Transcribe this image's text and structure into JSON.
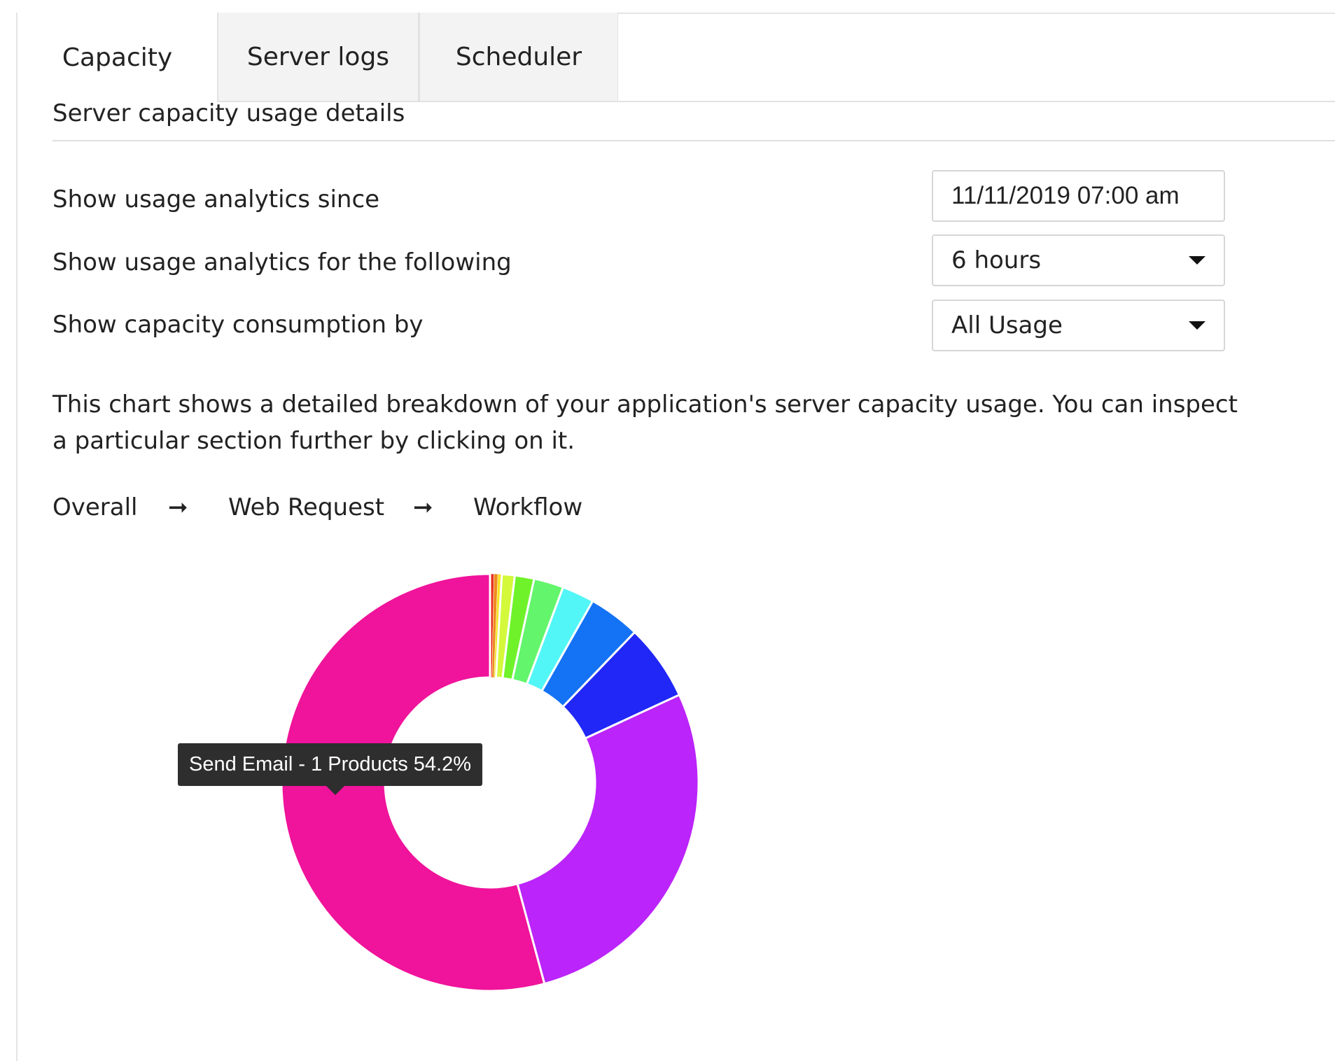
{
  "tabs": [
    {
      "label": "Capacity",
      "active": true
    },
    {
      "label": "Server logs",
      "active": false
    },
    {
      "label": "Scheduler",
      "active": false
    }
  ],
  "section_title": "Server capacity usage details",
  "form": {
    "since_label": "Show usage analytics since",
    "since_value": "11/11/2019 07:00 am",
    "duration_label": "Show usage analytics for the following",
    "duration_value": "6 hours",
    "consumption_label": "Show capacity consumption by",
    "consumption_value": "All Usage"
  },
  "description": "This chart shows a detailed breakdown of your application's server capacity usage. You can inspect a particular section further by clicking on it.",
  "breadcrumb": {
    "items": [
      "Overall",
      "Web Request",
      "Workflow"
    ],
    "separator": "➞"
  },
  "tooltip": {
    "label": "Send Email - 1 Products",
    "value": "54.2%"
  },
  "chart_data": {
    "type": "pie",
    "variant": "donut",
    "series": [
      {
        "color": "#e8321f",
        "percent": 0.3
      },
      {
        "color": "#ef8a1d",
        "percent": 0.3
      },
      {
        "color": "#f5e51f",
        "percent": 0.3
      },
      {
        "color": "#d3f93a",
        "percent": 1.0
      },
      {
        "color": "#6ff22a",
        "percent": 1.5
      },
      {
        "color": "#63f56c",
        "percent": 2.3
      },
      {
        "color": "#52f6f6",
        "percent": 2.5
      },
      {
        "color": "#1472f5",
        "percent": 4.0
      },
      {
        "color": "#2027f7",
        "percent": 5.9
      },
      {
        "label": "Send Email - 1 Products",
        "color": "#bb24fa",
        "percent": 27.7
      },
      {
        "label": "Send Email - 1 Products",
        "color": "#f0139b",
        "percent": 54.2
      }
    ]
  }
}
